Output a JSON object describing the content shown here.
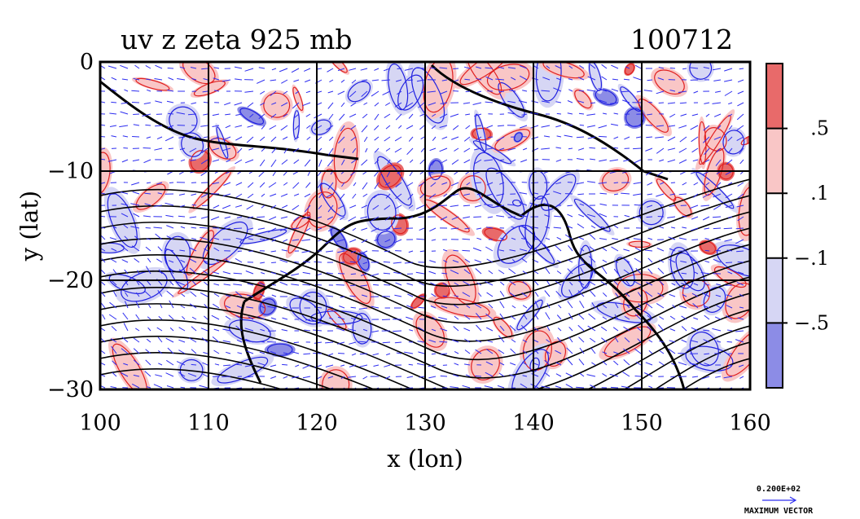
{
  "chart_data": {
    "type": "heatmap",
    "title": "uv z zeta 925 mb",
    "date_label": "100712",
    "xlabel": "x (lon)",
    "ylabel": "y (lat)",
    "xlim": [
      100,
      160
    ],
    "ylim": [
      -30,
      0
    ],
    "x_ticks": [
      100,
      110,
      120,
      130,
      140,
      150,
      160
    ],
    "y_ticks": [
      {
        "value": 0,
        "label": "0"
      },
      {
        "value": -10,
        "label": "−10"
      },
      {
        "value": -20,
        "label": "−20"
      },
      {
        "value": -30,
        "label": "−30"
      }
    ],
    "grid": true,
    "colorbar": {
      "placement": "right",
      "levels": [
        {
          "label": "",
          "color": "#e86a6a"
        },
        {
          "label": ".5",
          "color": "#f9c6c6"
        },
        {
          "label": ".1",
          "color": "#ffffff"
        },
        {
          "label": "−.1",
          "color": "#d6d6f4"
        },
        {
          "label": "−.5",
          "color": "#8c8ce6"
        }
      ]
    },
    "vector_legend": {
      "magnitude": "0.200E+02",
      "caption": "MAXIMUM VECTOR"
    },
    "colors": {
      "positive_contour": "#e02020",
      "negative_contour": "#2020e0",
      "height_contour": "#000000",
      "vectors": "#2d2df0"
    }
  }
}
